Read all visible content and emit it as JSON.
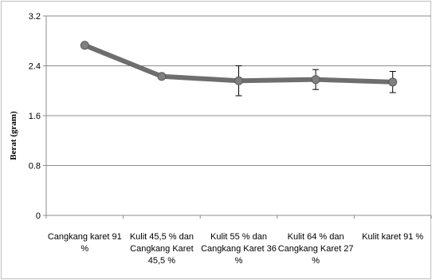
{
  "chart_data": {
    "type": "line",
    "title": "",
    "xlabel": "",
    "ylabel": "Berat (gram)",
    "ylim": [
      0,
      3.2
    ],
    "yticks": [
      "0",
      "0.8",
      "1.6",
      "2.4",
      "3.2"
    ],
    "ytick_values": [
      0,
      0.8,
      1.6,
      2.4,
      3.2
    ],
    "grid": true,
    "legend": "none",
    "categories": [
      [
        "Cangkang karet 91",
        "%"
      ],
      [
        "Kulit 45,5 % dan",
        "Cangkang Karet",
        "45,5 %"
      ],
      [
        "Kulit 55 % dan",
        "Cangkang Karet 36",
        "%"
      ],
      [
        "Kulit 64 % dan",
        "Cangkang Karet 27",
        "%"
      ],
      [
        "Kulit karet 91 %"
      ]
    ],
    "series": [
      {
        "values": [
          2.73,
          2.23,
          2.16,
          2.18,
          2.14
        ],
        "error": [
          0.0,
          0.0,
          0.24,
          0.16,
          0.17
        ]
      }
    ],
    "colors": {
      "line": "#6e6e6e",
      "marker": "#808080",
      "grid": "#8c8c8c",
      "axis": "#8c8c8c"
    }
  }
}
